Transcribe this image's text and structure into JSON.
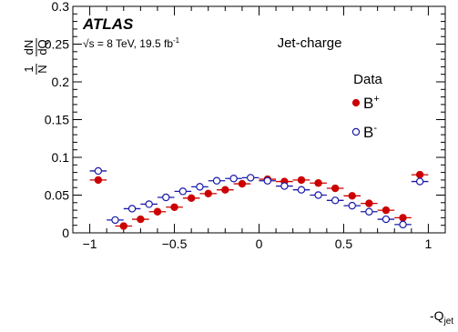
{
  "chart_data": {
    "type": "scatter",
    "experiment_label": "ATLAS",
    "energy_text": "√s = 8 TeV, 19.5 fb",
    "energy_superscript": "-1",
    "title": "Jet-charge",
    "legend_title": "Data",
    "legend_position": "top-right",
    "ylabel": {
      "numerator_left": "1",
      "denominator_left": "N",
      "numerator_right": "dN",
      "denominator_right": "dQ"
    },
    "xlabel": {
      "main": "-Q",
      "subscript": "jet"
    },
    "xlim": [
      -1.1,
      1.1
    ],
    "ylim": [
      0,
      0.3
    ],
    "grid": false,
    "x_ticks": [
      -1,
      -0.5,
      0,
      0.5,
      1
    ],
    "x_tick_labels": [
      "−1",
      "−0.5",
      "0",
      "0.5",
      "1"
    ],
    "y_ticks": [
      0,
      0.05,
      0.1,
      0.15,
      0.2,
      0.25,
      0.3
    ],
    "y_tick_labels": [
      "0",
      "0.05",
      "0.1",
      "0.15",
      "0.2",
      "0.25",
      "0.3"
    ],
    "bin_half_width": 0.05,
    "series": [
      {
        "name": "B+",
        "legend_main": "B",
        "legend_sup": "+",
        "marker": "filled-circle",
        "color": "#cc0000",
        "x": [
          -0.95,
          -0.8,
          -0.7,
          -0.6,
          -0.5,
          -0.4,
          -0.3,
          -0.2,
          -0.1,
          0.05,
          0.15,
          0.25,
          0.35,
          0.45,
          0.55,
          0.65,
          0.75,
          0.85,
          0.95
        ],
        "y": [
          0.07,
          0.009,
          0.018,
          0.028,
          0.034,
          0.046,
          0.052,
          0.057,
          0.065,
          0.071,
          0.068,
          0.07,
          0.066,
          0.059,
          0.049,
          0.039,
          0.03,
          0.02,
          0.077
        ]
      },
      {
        "name": "B-",
        "legend_main": "B",
        "legend_sup": "-",
        "marker": "open-circle",
        "color": "#1a1aaa",
        "x": [
          -0.95,
          -0.85,
          -0.75,
          -0.65,
          -0.55,
          -0.45,
          -0.35,
          -0.25,
          -0.15,
          -0.05,
          0.05,
          0.15,
          0.25,
          0.35,
          0.45,
          0.55,
          0.65,
          0.75,
          0.85,
          0.95
        ],
        "y": [
          0.082,
          0.017,
          0.032,
          0.038,
          0.047,
          0.055,
          0.061,
          0.069,
          0.072,
          0.073,
          0.069,
          0.062,
          0.057,
          0.05,
          0.043,
          0.036,
          0.028,
          0.018,
          0.011,
          0.068
        ]
      }
    ]
  }
}
